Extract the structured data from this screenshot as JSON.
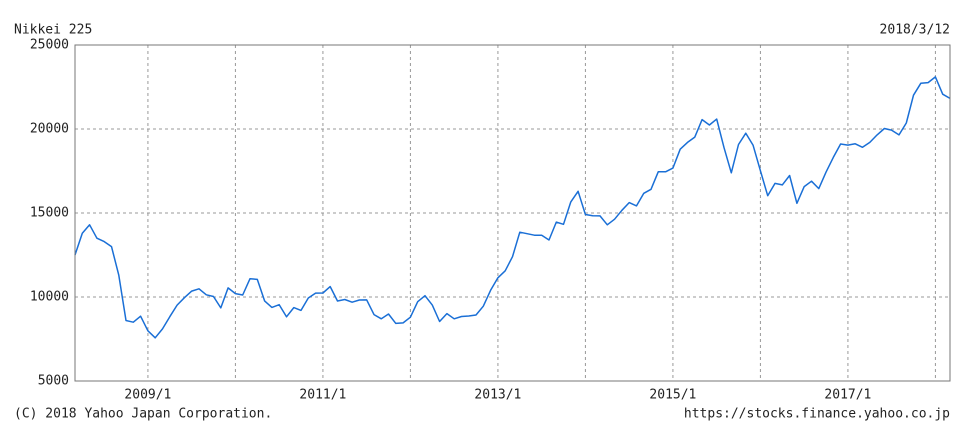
{
  "header": {
    "title": "Nikkei 225",
    "date": "2018/3/12"
  },
  "footer": {
    "copyright": "(C) 2018 Yahoo Japan Corporation.",
    "url": "https://stocks.finance.yahoo.co.jp"
  },
  "chart_data": {
    "type": "line",
    "x": [
      "2008/3",
      "2008/4",
      "2008/5",
      "2008/6",
      "2008/7",
      "2008/8",
      "2008/9",
      "2008/10",
      "2008/11",
      "2008/12",
      "2009/1",
      "2009/2",
      "2009/3",
      "2009/4",
      "2009/5",
      "2009/6",
      "2009/7",
      "2009/8",
      "2009/9",
      "2009/10",
      "2009/11",
      "2009/12",
      "2010/1",
      "2010/2",
      "2010/3",
      "2010/4",
      "2010/5",
      "2010/6",
      "2010/7",
      "2010/8",
      "2010/9",
      "2010/10",
      "2010/11",
      "2010/12",
      "2011/1",
      "2011/2",
      "2011/3",
      "2011/4",
      "2011/5",
      "2011/6",
      "2011/7",
      "2011/8",
      "2011/9",
      "2011/10",
      "2011/11",
      "2011/12",
      "2012/1",
      "2012/2",
      "2012/3",
      "2012/4",
      "2012/5",
      "2012/6",
      "2012/7",
      "2012/8",
      "2012/9",
      "2012/10",
      "2012/11",
      "2012/12",
      "2013/1",
      "2013/2",
      "2013/3",
      "2013/4",
      "2013/5",
      "2013/6",
      "2013/7",
      "2013/8",
      "2013/9",
      "2013/10",
      "2013/11",
      "2013/12",
      "2014/1",
      "2014/2",
      "2014/3",
      "2014/4",
      "2014/5",
      "2014/6",
      "2014/7",
      "2014/8",
      "2014/9",
      "2014/10",
      "2014/11",
      "2014/12",
      "2015/1",
      "2015/2",
      "2015/3",
      "2015/4",
      "2015/5",
      "2015/6",
      "2015/7",
      "2015/8",
      "2015/9",
      "2015/10",
      "2015/11",
      "2015/12",
      "2016/1",
      "2016/2",
      "2016/3",
      "2016/4",
      "2016/5",
      "2016/6",
      "2016/7",
      "2016/8",
      "2016/9",
      "2016/10",
      "2016/11",
      "2016/12",
      "2017/1",
      "2017/2",
      "2017/3",
      "2017/4",
      "2017/5",
      "2017/6",
      "2017/7",
      "2017/8",
      "2017/9",
      "2017/10",
      "2017/11",
      "2017/12",
      "2018/1",
      "2018/2",
      "2018/3"
    ],
    "series": [
      {
        "name": "Nikkei 225",
        "color": "#1a6fd6",
        "values": [
          12500,
          13800,
          14300,
          13500,
          13300,
          13000,
          11300,
          8600,
          8500,
          8860,
          7990,
          7570,
          8100,
          8830,
          9520,
          9960,
          10350,
          10490,
          10130,
          10030,
          9350,
          10540,
          10200,
          10120,
          11090,
          11050,
          9770,
          9380,
          9540,
          8820,
          9370,
          9200,
          9940,
          10230,
          10240,
          10620,
          9760,
          9850,
          9690,
          9820,
          9830,
          8950,
          8700,
          8990,
          8430,
          8460,
          8800,
          9720,
          10080,
          9520,
          8540,
          9010,
          8700,
          8840,
          8870,
          8930,
          9450,
          10400,
          11140,
          11560,
          12400,
          13860,
          13770,
          13680,
          13670,
          13390,
          14460,
          14330,
          15660,
          16290,
          14910,
          14840,
          14830,
          14300,
          14630,
          15160,
          15620,
          15420,
          16170,
          16410,
          17460,
          17450,
          17670,
          18800,
          19200,
          19520,
          20560,
          20240,
          20590,
          18890,
          17390,
          19080,
          19750,
          19030,
          17520,
          16030,
          16760,
          16670,
          17230,
          15580,
          16570,
          16890,
          16450,
          17430,
          18310,
          19110,
          19040,
          19120,
          18910,
          19200,
          19650,
          20030,
          19930,
          19650,
          20360,
          22010,
          22720,
          22760,
          23100,
          22070,
          21820
        ]
      }
    ],
    "xlim": [
      "2008/3",
      "2018/3"
    ],
    "xticks": [
      "2009/1",
      {
        "value": "2010/1",
        "label": null
      },
      "2011/1",
      {
        "value": "2012/1",
        "label": null
      },
      "2013/1",
      {
        "value": "2014/1",
        "label": null
      },
      "2015/1",
      {
        "value": "2016/1",
        "label": null
      },
      "2017/1",
      {
        "value": "2018/1",
        "label": null
      }
    ],
    "ylim": [
      5000,
      25000
    ],
    "yticks": [
      5000,
      10000,
      15000,
      20000,
      25000
    ],
    "grid": true
  }
}
